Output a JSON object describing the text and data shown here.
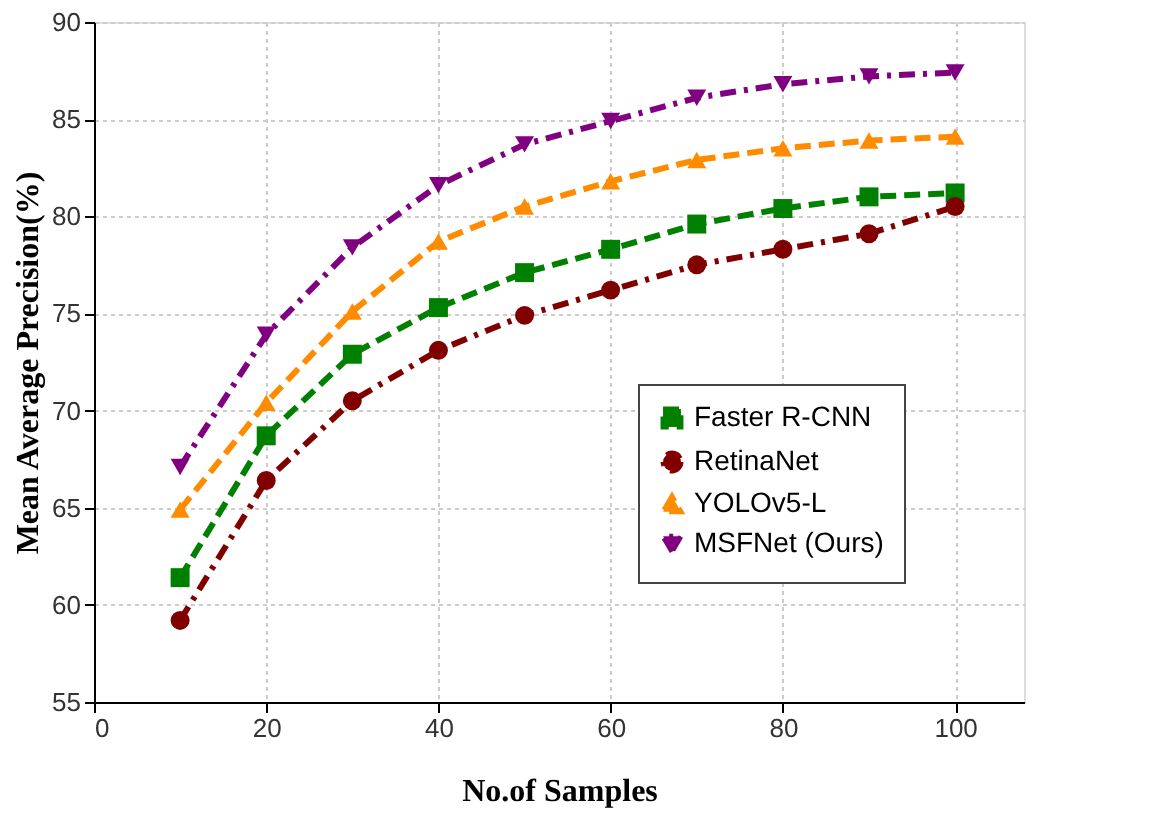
{
  "chart_data": {
    "type": "line",
    "xlabel": "No.of Samples",
    "ylabel": "Mean Average Precision(%)",
    "x": [
      10,
      20,
      30,
      40,
      50,
      60,
      70,
      80,
      90,
      100
    ],
    "xlim": [
      0,
      108
    ],
    "xticks": [
      0,
      20,
      40,
      60,
      80,
      100
    ],
    "ylim": [
      55,
      90
    ],
    "yticks": [
      55,
      60,
      65,
      70,
      75,
      80,
      85,
      90
    ],
    "grid": true,
    "legend": "bottom right",
    "series": [
      {
        "name": "Faster R-CNN",
        "color": "#008000",
        "marker": "square",
        "line_style": "dashed",
        "values": [
          61.4,
          68.7,
          72.9,
          75.3,
          77.1,
          78.3,
          79.6,
          80.4,
          81.0,
          81.2
        ]
      },
      {
        "name": "RetinaNet",
        "color": "#800000",
        "marker": "circle",
        "line_style": "dashdot",
        "values": [
          59.2,
          66.4,
          70.5,
          73.1,
          74.9,
          76.2,
          77.5,
          78.3,
          79.1,
          80.5
        ]
      },
      {
        "name": "YOLOv5-L",
        "color": "#ff8c00",
        "marker": "triangle",
        "line_style": "dashed",
        "values": [
          64.9,
          70.4,
          75.1,
          78.7,
          80.5,
          81.8,
          82.9,
          83.5,
          83.9,
          84.1
        ]
      },
      {
        "name": "MSFNet (Ours)",
        "color": "#800080",
        "marker": "triangle-down",
        "line_style": "dashdot",
        "values": [
          67.1,
          73.9,
          78.4,
          81.6,
          83.7,
          84.9,
          86.1,
          86.8,
          87.2,
          87.4
        ]
      }
    ]
  }
}
